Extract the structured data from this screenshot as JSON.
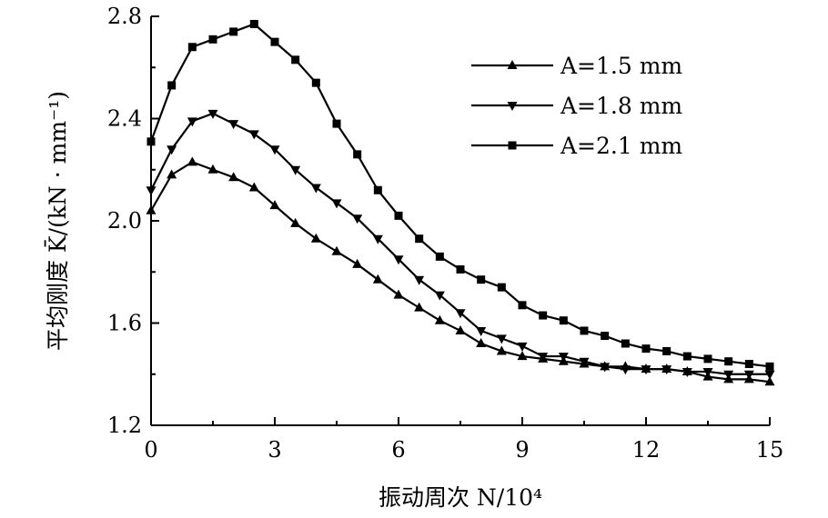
{
  "chart_data": {
    "type": "line",
    "xlabel": "振动周次 N/10⁴",
    "ylabel": "平均刚度 K̄/(kN · mm⁻¹)",
    "xlim": [
      0,
      15
    ],
    "ylim": [
      1.2,
      2.8
    ],
    "xticks": [
      "0",
      "3",
      "6",
      "9",
      "12",
      "15"
    ],
    "yticks": [
      "1.2",
      "1.6",
      "2.0",
      "2.4",
      "2.8"
    ],
    "legend_position": "top-right",
    "x": [
      0,
      0.5,
      1,
      1.5,
      2,
      2.5,
      3,
      3.5,
      4,
      4.5,
      5,
      5.5,
      6,
      6.5,
      7,
      7.5,
      8,
      8.5,
      9,
      9.5,
      10,
      10.5,
      11,
      11.5,
      12,
      12.5,
      13,
      13.5,
      14,
      14.5,
      15
    ],
    "series": [
      {
        "name": "A=1.5 mm",
        "marker": "triangle-up",
        "values": [
          2.04,
          2.18,
          2.23,
          2.2,
          2.17,
          2.13,
          2.06,
          1.99,
          1.93,
          1.88,
          1.83,
          1.77,
          1.71,
          1.66,
          1.61,
          1.57,
          1.52,
          1.49,
          1.47,
          1.46,
          1.45,
          1.44,
          1.43,
          1.43,
          1.42,
          1.42,
          1.41,
          1.39,
          1.38,
          1.38,
          1.37
        ]
      },
      {
        "name": "A=1.8 mm",
        "marker": "triangle-down",
        "values": [
          2.12,
          2.28,
          2.39,
          2.42,
          2.38,
          2.34,
          2.28,
          2.2,
          2.13,
          2.07,
          2.01,
          1.93,
          1.85,
          1.77,
          1.71,
          1.64,
          1.57,
          1.54,
          1.51,
          1.47,
          1.47,
          1.45,
          1.43,
          1.42,
          1.42,
          1.42,
          1.41,
          1.41,
          1.4,
          1.4,
          1.4
        ]
      },
      {
        "name": "A=2.1 mm",
        "marker": "square",
        "values": [
          2.31,
          2.53,
          2.68,
          2.71,
          2.74,
          2.77,
          2.7,
          2.63,
          2.54,
          2.38,
          2.26,
          2.12,
          2.02,
          1.93,
          1.86,
          1.81,
          1.77,
          1.74,
          1.67,
          1.63,
          1.61,
          1.57,
          1.55,
          1.52,
          1.5,
          1.49,
          1.47,
          1.46,
          1.45,
          1.44,
          1.43
        ]
      }
    ]
  }
}
